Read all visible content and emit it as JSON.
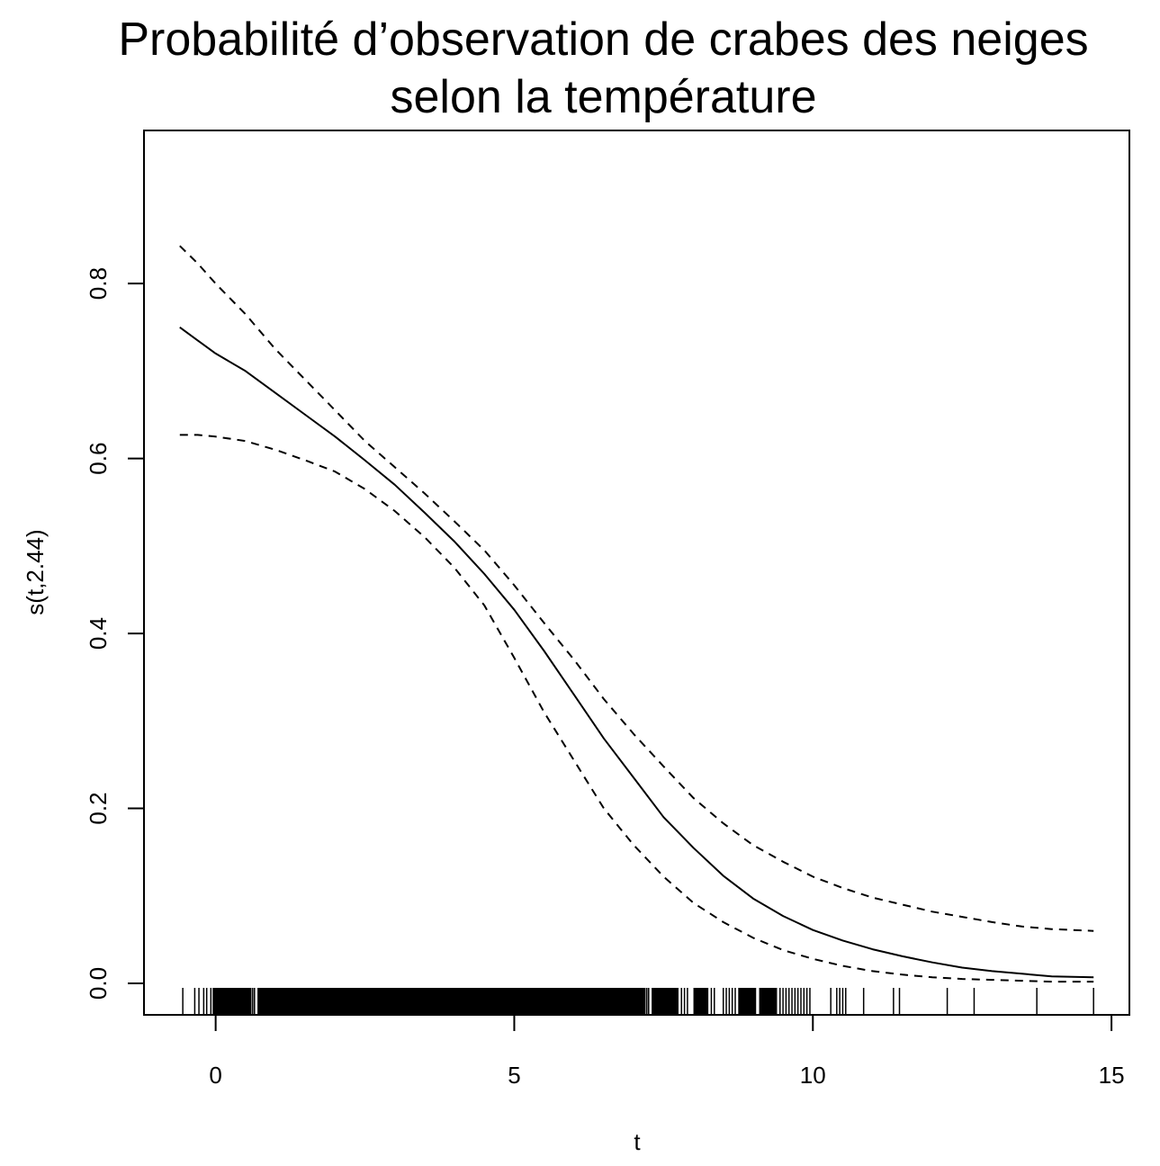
{
  "chart_data": {
    "type": "line",
    "title_lines": [
      "Probabilité d’observation de crabes des neiges",
      "selon la température"
    ],
    "xlabel": "t",
    "ylabel": "s(t,2.44)",
    "xlim": [
      -1.2,
      15.3
    ],
    "ylim": [
      -0.036,
      0.975
    ],
    "x_ticks": [
      0,
      5,
      10,
      15
    ],
    "x_tick_labels": [
      "0",
      "5",
      "10",
      "15"
    ],
    "y_ticks": [
      0.0,
      0.2,
      0.4,
      0.6,
      0.8
    ],
    "y_tick_labels": [
      "0.0",
      "0.2",
      "0.4",
      "0.6",
      "0.8"
    ],
    "grid": false,
    "legend": "none",
    "series": [
      {
        "style": "solid",
        "x": [
          -0.6,
          -0.3,
          0,
          0.5,
          1,
          1.5,
          2,
          2.5,
          3,
          3.5,
          4,
          4.5,
          5,
          5.5,
          6,
          6.5,
          7,
          7.5,
          8,
          8.5,
          9,
          9.5,
          10,
          10.5,
          11,
          11.5,
          12,
          12.5,
          13,
          13.5,
          14,
          14.7
        ],
        "y": [
          0.75,
          0.735,
          0.72,
          0.7,
          0.675,
          0.65,
          0.625,
          0.598,
          0.57,
          0.538,
          0.505,
          0.468,
          0.427,
          0.38,
          0.33,
          0.28,
          0.235,
          0.19,
          0.155,
          0.123,
          0.097,
          0.077,
          0.061,
          0.049,
          0.039,
          0.031,
          0.024,
          0.018,
          0.014,
          0.011,
          0.008,
          0.007
        ]
      },
      {
        "style": "dashed",
        "x": [
          -0.6,
          -0.3,
          0,
          0.5,
          1,
          1.5,
          2,
          2.5,
          3,
          3.5,
          4,
          4.5,
          5,
          5.5,
          6,
          6.5,
          7,
          7.5,
          8,
          8.5,
          9,
          9.5,
          10,
          10.5,
          11,
          11.5,
          12,
          12.5,
          13,
          13.5,
          14,
          14.7
        ],
        "y": [
          0.843,
          0.823,
          0.8,
          0.765,
          0.725,
          0.69,
          0.655,
          0.62,
          0.59,
          0.56,
          0.528,
          0.495,
          0.455,
          0.412,
          0.37,
          0.325,
          0.285,
          0.248,
          0.212,
          0.183,
          0.158,
          0.139,
          0.122,
          0.109,
          0.098,
          0.09,
          0.082,
          0.076,
          0.07,
          0.065,
          0.062,
          0.06
        ]
      },
      {
        "style": "dashed",
        "x": [
          -0.6,
          -0.3,
          0,
          0.5,
          1,
          1.5,
          2,
          2.5,
          3,
          3.5,
          4,
          4.5,
          5,
          5.5,
          6,
          6.5,
          7,
          7.5,
          8,
          8.5,
          9,
          9.5,
          10,
          10.5,
          11,
          11.5,
          12,
          12.5,
          13,
          13.5,
          14,
          14.7
        ],
        "y": [
          0.627,
          0.627,
          0.625,
          0.62,
          0.61,
          0.598,
          0.585,
          0.565,
          0.54,
          0.51,
          0.475,
          0.432,
          0.372,
          0.31,
          0.255,
          0.2,
          0.158,
          0.122,
          0.092,
          0.07,
          0.052,
          0.038,
          0.028,
          0.02,
          0.014,
          0.01,
          0.007,
          0.005,
          0.004,
          0.003,
          0.002,
          0.002
        ]
      }
    ],
    "rug": {
      "dense_ranges": [
        [
          -0.05,
          0.6
        ],
        [
          0.7,
          7.2
        ],
        [
          7.3,
          7.75
        ],
        [
          8.0,
          8.25
        ],
        [
          8.75,
          9.05
        ],
        [
          9.1,
          9.4
        ]
      ],
      "x": [
        -0.55,
        -0.35,
        -0.28,
        -0.2,
        -0.15,
        -0.08,
        0.62,
        0.65,
        7.22,
        7.25,
        7.8,
        7.85,
        7.9,
        8.3,
        8.35,
        8.5,
        8.55,
        8.6,
        8.65,
        8.7,
        9.45,
        9.5,
        9.55,
        9.6,
        9.65,
        9.7,
        9.75,
        9.8,
        9.85,
        9.9,
        9.95,
        10.3,
        10.4,
        10.45,
        10.5,
        10.55,
        10.85,
        11.35,
        11.45,
        12.25,
        12.7,
        13.75,
        14.7
      ]
    }
  }
}
